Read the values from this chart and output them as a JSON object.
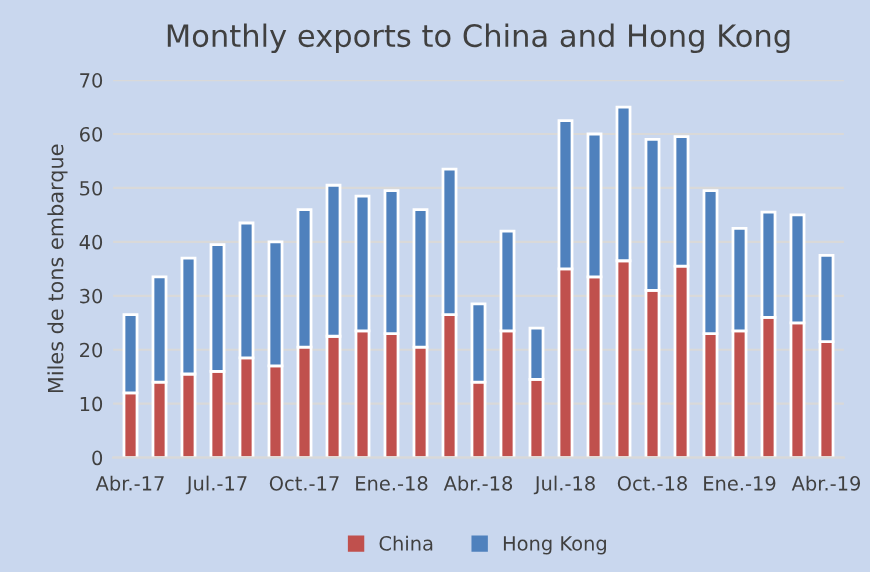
{
  "chart_data": {
    "type": "bar",
    "title": "Monthly exports to China and Hong Kong",
    "ylabel": "Miles de tons embarque",
    "categories": [
      "Abr.-17",
      null,
      null,
      "Jul.-17",
      null,
      null,
      "Oct.-17",
      null,
      null,
      "Ene.-18",
      null,
      null,
      "Abr.-18",
      null,
      null,
      "Jul.-18",
      null,
      null,
      "Oct.-18",
      null,
      null,
      "Ene.-19",
      null,
      null,
      "Abr.-19"
    ],
    "stacked": true,
    "series": [
      {
        "name": "China",
        "color": "#c0504d",
        "values": [
          12,
          14,
          15.5,
          16,
          18.5,
          17,
          20.5,
          22.5,
          23.5,
          23,
          20.5,
          26.5,
          14,
          23.5,
          14.5,
          35,
          33.5,
          36.5,
          31,
          35.5,
          23,
          23.5,
          26,
          25,
          21.5
        ]
      },
      {
        "name": "Hong Kong",
        "color": "#4f81bd",
        "values": [
          14.5,
          19.5,
          21.5,
          23.5,
          25,
          23,
          25.5,
          28,
          25,
          26.5,
          25.5,
          27,
          14.5,
          18.5,
          9.5,
          27.5,
          26.5,
          28.5,
          28,
          24,
          26.5,
          19,
          19.5,
          20,
          16
        ]
      }
    ],
    "ylim": [
      0,
      70
    ],
    "yticks": [
      0,
      10,
      20,
      30,
      40,
      50,
      60,
      70
    ],
    "grid": "y",
    "legend": "bottom"
  }
}
